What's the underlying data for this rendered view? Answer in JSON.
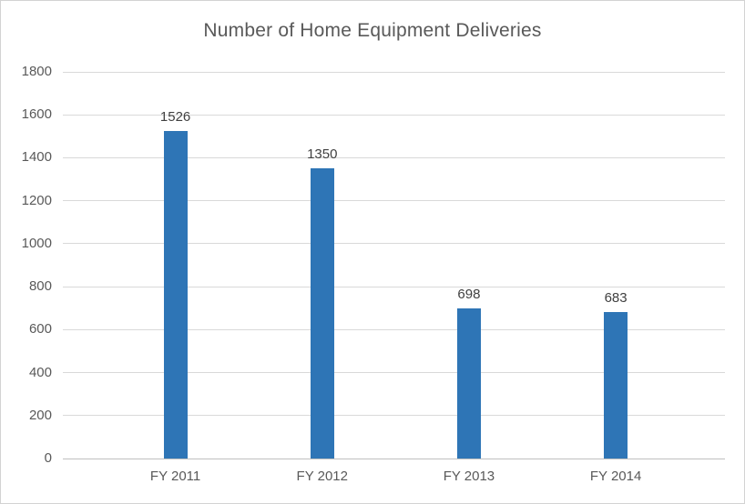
{
  "chart_data": {
    "type": "bar",
    "title": "Number of Home Equipment Deliveries",
    "categories": [
      "FY 2011",
      "FY 2012",
      "FY 2013",
      "FY 2014"
    ],
    "values": [
      1526,
      1350,
      698,
      683
    ],
    "data_labels": [
      "1526",
      "1350",
      "698",
      "683"
    ],
    "xlabel": "",
    "ylabel": "",
    "ylim": [
      0,
      1800
    ],
    "ytick_step": 200,
    "yticks": [
      0,
      200,
      400,
      600,
      800,
      1000,
      1200,
      1400,
      1600,
      1800
    ],
    "grid": "horizontal",
    "legend": "none",
    "colors": {
      "bar": "#2e75b6",
      "title_text": "#595959",
      "tick_text": "#595959",
      "data_label_text": "#404040",
      "gridline": "#d9d9d9",
      "axis_line": "#bfbfbf",
      "background": "#ffffff",
      "border": "#d3d3d3"
    }
  }
}
